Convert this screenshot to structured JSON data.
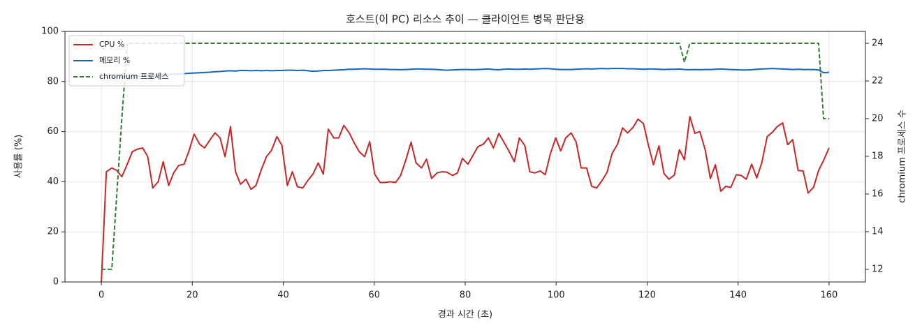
{
  "chart_data": {
    "type": "line",
    "title": "호스트(이 PC) 리소스 추이 — 클라이언트 병목 판단용",
    "xlabel": "경과 시간 (초)",
    "ylabel": "사용률 (%)",
    "y2label": "chromium 프로세스 수",
    "x": [
      0,
      1.1,
      2.3,
      3.4,
      4.5,
      5.7,
      6.8,
      7.9,
      9.1,
      10.2,
      11.3,
      12.5,
      13.6,
      14.8,
      15.9,
      17.0,
      18.2,
      19.3,
      20.4,
      21.6,
      22.7,
      23.8,
      25.0,
      26.1,
      27.2,
      28.4,
      29.5,
      30.6,
      31.8,
      32.9,
      34.0,
      35.2,
      36.3,
      37.4,
      38.6,
      39.7,
      40.9,
      42.0,
      43.1,
      44.3,
      45.4,
      46.5,
      47.7,
      48.8,
      49.9,
      51.1,
      52.2,
      53.3,
      54.5,
      55.6,
      56.7,
      57.9,
      59.0,
      60.1,
      61.3,
      62.4,
      63.5,
      64.7,
      65.8,
      67.0,
      68.1,
      69.2,
      70.4,
      71.5,
      72.6,
      73.8,
      74.9,
      76.0,
      77.2,
      78.3,
      79.4,
      80.6,
      81.7,
      82.8,
      84.0,
      85.1,
      86.2,
      87.4,
      88.5,
      89.6,
      90.8,
      91.9,
      93.1,
      94.2,
      95.3,
      96.5,
      97.6,
      98.7,
      99.9,
      101.0,
      102.1,
      103.3,
      104.4,
      105.5,
      106.7,
      107.8,
      108.9,
      110.1,
      111.2,
      112.3,
      113.5,
      114.6,
      115.7,
      116.9,
      118.0,
      119.2,
      120.3,
      121.4,
      122.6,
      123.7,
      124.8,
      126.0,
      127.1,
      128.2,
      129.4,
      130.5,
      131.6,
      132.8,
      133.9,
      135.0,
      136.2,
      137.3,
      138.4,
      139.6,
      140.7,
      141.8,
      143.0,
      144.1,
      145.2,
      146.4,
      147.5,
      148.6,
      149.8,
      150.9,
      152.0,
      153.2,
      154.3,
      155.4,
      156.6,
      157.7,
      158.8,
      160.0
    ],
    "series": [
      {
        "name": "CPU %",
        "color": "#c62828",
        "linestyle": "solid",
        "values": [
          0,
          44,
          45.5,
          44.5,
          42,
          47,
          52,
          53,
          53.5,
          50,
          37.5,
          40,
          48,
          38.5,
          43.5,
          46.5,
          47,
          52.5,
          59,
          55,
          53.5,
          56.5,
          59.5,
          57.5,
          50,
          62,
          44,
          39,
          41,
          37,
          38.5,
          45,
          50,
          52.5,
          58,
          54.5,
          38.5,
          44,
          38,
          37.5,
          40.5,
          43,
          47.5,
          43,
          61,
          57.5,
          57.5,
          62.5,
          59.5,
          55.5,
          52,
          50,
          56,
          43,
          39.7,
          39.7,
          40,
          39.7,
          42.5,
          49,
          55.8,
          47.5,
          45.5,
          49,
          41.3,
          43.5,
          44,
          43.8,
          42.5,
          43.5,
          49.3,
          47,
          50.5,
          54,
          55,
          57.5,
          53.5,
          59.3,
          55.8,
          52.3,
          48,
          57.5,
          54.5,
          44,
          43.5,
          44.3,
          42.8,
          51,
          57.5,
          52.3,
          57.5,
          59.5,
          55.8,
          45.5,
          45.5,
          38.2,
          37.5,
          40.5,
          43.8,
          51.3,
          55,
          61.5,
          59.5,
          61.7,
          65,
          63.2,
          54.5,
          46.8,
          54.3,
          43.3,
          41,
          42.7,
          52.8,
          48.8,
          66,
          59.3,
          60,
          52.5,
          41.3,
          46.8,
          36.2,
          38.2,
          37.7,
          42.8,
          42.5,
          41,
          47,
          41.5,
          47.5,
          58,
          59.7,
          62,
          63.5,
          54.8,
          56.8,
          44.5,
          44.3,
          35.5,
          37.8,
          44.5,
          48.5,
          53.5
        ]
      },
      {
        "name": "메모리 %",
        "color": "#1565c0",
        "linestyle": "solid",
        "values": [
          81.5,
          81.6,
          81.7,
          81.8,
          81.9,
          82.0,
          82.1,
          82.2,
          82.3,
          82.4,
          82.5,
          82.6,
          82.7,
          82.8,
          82.9,
          83.0,
          83.1,
          83.3,
          83.4,
          83.5,
          83.6,
          83.7,
          83.9,
          84.0,
          84.2,
          84.3,
          84.2,
          84.4,
          84.4,
          84.3,
          84.4,
          84.3,
          84.4,
          84.3,
          84.4,
          84.4,
          84.5,
          84.5,
          84.4,
          84.5,
          84.3,
          84.1,
          84.2,
          84.4,
          84.4,
          84.5,
          84.6,
          84.7,
          84.9,
          84.9,
          85.0,
          85.1,
          85.0,
          84.9,
          84.9,
          84.9,
          84.8,
          84.8,
          84.7,
          84.8,
          84.9,
          85.0,
          85.0,
          84.9,
          84.9,
          84.8,
          84.6,
          84.5,
          84.6,
          84.7,
          84.8,
          84.8,
          84.7,
          84.8,
          84.9,
          85.0,
          84.8,
          84.7,
          84.9,
          85.0,
          84.9,
          84.9,
          85.0,
          84.9,
          85.0,
          85.1,
          85.2,
          85.1,
          84.9,
          84.8,
          84.8,
          84.8,
          84.9,
          85.0,
          85.1,
          85.0,
          85.1,
          85.2,
          85.1,
          85.2,
          85.2,
          85.2,
          85.1,
          85.1,
          85.0,
          84.9,
          85.0,
          85.0,
          84.9,
          84.8,
          84.9,
          84.9,
          85.0,
          84.8,
          84.7,
          84.8,
          84.7,
          84.8,
          84.8,
          84.9,
          85.0,
          84.9,
          84.8,
          84.7,
          84.6,
          84.6,
          84.7,
          84.9,
          85.0,
          85.1,
          85.2,
          85.1,
          85.0,
          84.9,
          84.8,
          84.9,
          84.8,
          84.8,
          84.8,
          84.6,
          83.5,
          83.7
        ]
      },
      {
        "name": "chromium 프로세스",
        "color": "#2e7d32",
        "linestyle": "dashed",
        "axis": "y2",
        "values": [
          12,
          12,
          12,
          16,
          20,
          24,
          24,
          24,
          24,
          24,
          24,
          24,
          24,
          24,
          24,
          24,
          24,
          24,
          24,
          24,
          24,
          24,
          24,
          24,
          24,
          24,
          24,
          24,
          24,
          24,
          24,
          24,
          24,
          24,
          24,
          24,
          24,
          24,
          24,
          24,
          24,
          24,
          24,
          24,
          24,
          24,
          24,
          24,
          24,
          24,
          24,
          24,
          24,
          24,
          24,
          24,
          24,
          24,
          24,
          24,
          24,
          24,
          24,
          24,
          24,
          24,
          24,
          24,
          24,
          24,
          24,
          24,
          24,
          24,
          24,
          24,
          24,
          24,
          24,
          24,
          24,
          24,
          24,
          24,
          24,
          24,
          24,
          24,
          24,
          24,
          24,
          24,
          24,
          24,
          24,
          24,
          24,
          24,
          24,
          24,
          24,
          24,
          24,
          24,
          24,
          24,
          24,
          24,
          24,
          24,
          24,
          24,
          24,
          23,
          24,
          24,
          24,
          24,
          24,
          24,
          24,
          24,
          24,
          24,
          24,
          24,
          24,
          24,
          24,
          24,
          24,
          24,
          24,
          24,
          24,
          24,
          24,
          24,
          24,
          24,
          20,
          20
        ]
      }
    ],
    "xlim": [
      -8,
      168
    ],
    "xticks": [
      0,
      20,
      40,
      60,
      80,
      100,
      120,
      140,
      160
    ],
    "ylim": [
      0,
      100
    ],
    "yticks": [
      0,
      20,
      40,
      60,
      80,
      100
    ],
    "y2lim": [
      11.33,
      24.63
    ],
    "y2ticks": [
      12,
      14,
      16,
      18,
      20,
      22,
      24
    ],
    "grid": true,
    "legend": "upper left"
  }
}
